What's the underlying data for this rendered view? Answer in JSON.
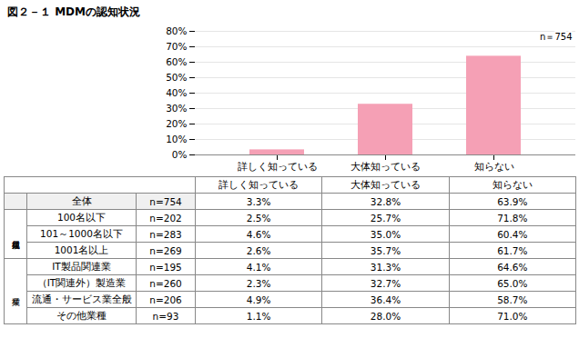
{
  "chart_data": [
    {
      "type": "bar",
      "title": "図２－１ MDMの認知状況",
      "categories": [
        "詳しく知っている",
        "大体知っている",
        "知らない"
      ],
      "values": [
        3.3,
        32.8,
        63.9
      ],
      "color": "#f5a0b5",
      "ylim": [
        0,
        80
      ],
      "yticks": [
        {
          "value": 0,
          "label": "0%"
        },
        {
          "value": 10,
          "label": "10%"
        },
        {
          "value": 20,
          "label": "20%"
        },
        {
          "value": 30,
          "label": "30%"
        },
        {
          "value": 40,
          "label": "40%"
        },
        {
          "value": 50,
          "label": "50%"
        },
        {
          "value": 60,
          "label": "60%"
        },
        {
          "value": 70,
          "label": "70%"
        },
        {
          "value": 80,
          "label": "80%"
        }
      ],
      "grid": true,
      "annotation": "n＝754"
    },
    {
      "type": "table",
      "columns": [
        "詳しく知っている",
        "大体知っている",
        "知らない"
      ],
      "rows": [
        {
          "group": null,
          "cells": [
            "全体",
            "n=754",
            "3.3%",
            "32.8%",
            "63.9%"
          ]
        },
        {
          "group": "従業員規模",
          "cells": [
            "100名以下",
            "n=202",
            "2.5%",
            "25.7%",
            "71.8%"
          ]
        },
        {
          "group": "従業員規模",
          "cells": [
            "101～1000名以下",
            "n=283",
            "4.6%",
            "35.0%",
            "60.4%"
          ]
        },
        {
          "group": "従業員規模",
          "cells": [
            "1001名以上",
            "n=269",
            "2.6%",
            "35.7%",
            "61.7%"
          ]
        },
        {
          "group": "業種",
          "cells": [
            "IT製品関連業",
            "n=195",
            "4.1%",
            "31.3%",
            "64.6%"
          ]
        },
        {
          "group": "業種",
          "cells": [
            "（IT関連外）製造業",
            "n=260",
            "2.3%",
            "32.7%",
            "65.0%"
          ]
        },
        {
          "group": "業種",
          "cells": [
            "流通・サービス業全般",
            "n=206",
            "4.9%",
            "36.4%",
            "58.7%"
          ]
        },
        {
          "group": "業種",
          "cells": [
            "その他業種",
            "n=93",
            "1.1%",
            "28.0%",
            "71.0%"
          ]
        }
      ]
    }
  ]
}
